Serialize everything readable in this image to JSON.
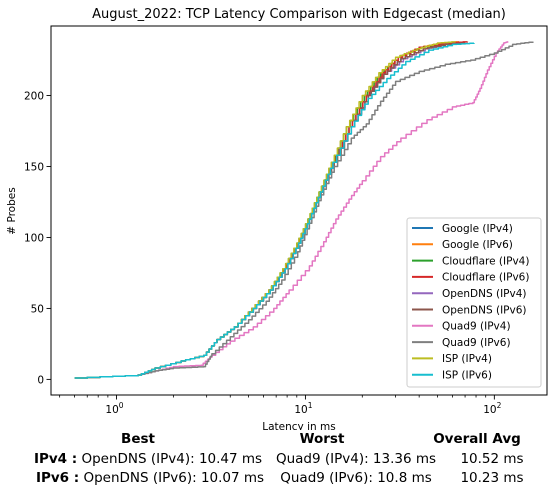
{
  "chart_data": {
    "type": "line",
    "title": "August_2022: TCP Latency Comparison with Edgecast (median)",
    "xlabel": "Latency in ms",
    "ylabel": "# Probes",
    "xscale": "log",
    "xlim": [
      0.45,
      190
    ],
    "ylim": [
      -11,
      249
    ],
    "x_ticks": [
      {
        "value": 1,
        "base": "10",
        "exp": "0"
      },
      {
        "value": 10,
        "base": "10",
        "exp": "1"
      },
      {
        "value": 100,
        "base": "10",
        "exp": "2"
      }
    ],
    "y_ticks": [
      0,
      50,
      100,
      150,
      200
    ],
    "grid": false,
    "legend_position": "lower-right",
    "series": [
      {
        "name": "Google (IPv4)",
        "color": "#1f77b4",
        "points": [
          [
            0.6,
            1
          ],
          [
            1.3,
            3
          ],
          [
            1.6,
            8
          ],
          [
            2.2,
            13
          ],
          [
            2.9,
            17
          ],
          [
            3.4,
            28
          ],
          [
            4.2,
            37
          ],
          [
            5.3,
            50
          ],
          [
            6.5,
            63
          ],
          [
            7.8,
            78
          ],
          [
            9.2,
            96
          ],
          [
            10.5,
            113
          ],
          [
            12,
            132
          ],
          [
            14,
            153
          ],
          [
            17,
            178
          ],
          [
            21,
            200
          ],
          [
            26,
            215
          ],
          [
            32,
            226
          ],
          [
            42,
            233
          ],
          [
            55,
            236
          ],
          [
            70,
            237
          ]
        ]
      },
      {
        "name": "Google (IPv6)",
        "color": "#ff7f0e",
        "points": [
          [
            0.6,
            1
          ],
          [
            1.3,
            3
          ],
          [
            1.6,
            8
          ],
          [
            2.2,
            13
          ],
          [
            2.9,
            17
          ],
          [
            3.4,
            28
          ],
          [
            4.2,
            37
          ],
          [
            5.3,
            50
          ],
          [
            6.5,
            63
          ],
          [
            7.7,
            78
          ],
          [
            9.1,
            96
          ],
          [
            10.4,
            113
          ],
          [
            11.9,
            132
          ],
          [
            13.8,
            153
          ],
          [
            16.5,
            178
          ],
          [
            20.5,
            200
          ],
          [
            25,
            216
          ],
          [
            31,
            227
          ],
          [
            40,
            234
          ],
          [
            52,
            237
          ],
          [
            65,
            238
          ]
        ]
      },
      {
        "name": "Cloudflare (IPv4)",
        "color": "#2ca02c",
        "points": [
          [
            0.6,
            1
          ],
          [
            1.3,
            3
          ],
          [
            1.6,
            8
          ],
          [
            2.2,
            13
          ],
          [
            2.9,
            17
          ],
          [
            3.4,
            28
          ],
          [
            4.2,
            37
          ],
          [
            5.2,
            50
          ],
          [
            6.4,
            63
          ],
          [
            7.6,
            78
          ],
          [
            9,
            96
          ],
          [
            10.3,
            113
          ],
          [
            11.8,
            132
          ],
          [
            13.8,
            153
          ],
          [
            16.5,
            178
          ],
          [
            20.5,
            200
          ],
          [
            25,
            216
          ],
          [
            31,
            227
          ],
          [
            40,
            234
          ],
          [
            52,
            236
          ],
          [
            68,
            237
          ]
        ]
      },
      {
        "name": "Cloudflare (IPv6)",
        "color": "#d62728",
        "points": [
          [
            0.6,
            1
          ],
          [
            1.3,
            3
          ],
          [
            1.6,
            8
          ],
          [
            2.2,
            13
          ],
          [
            2.9,
            17
          ],
          [
            3.4,
            28
          ],
          [
            4.2,
            37
          ],
          [
            5.2,
            50
          ],
          [
            6.4,
            63
          ],
          [
            7.7,
            78
          ],
          [
            9.1,
            96
          ],
          [
            10.4,
            113
          ],
          [
            11.9,
            132
          ],
          [
            14,
            153
          ],
          [
            17,
            178
          ],
          [
            21,
            200
          ],
          [
            25.5,
            216
          ],
          [
            31,
            227
          ],
          [
            40,
            234
          ],
          [
            55,
            237
          ],
          [
            72,
            238
          ]
        ]
      },
      {
        "name": "OpenDNS (IPv4)",
        "color": "#9467bd",
        "points": [
          [
            0.6,
            1
          ],
          [
            1.3,
            3
          ],
          [
            1.6,
            8
          ],
          [
            2.2,
            13
          ],
          [
            2.9,
            17
          ],
          [
            3.4,
            28
          ],
          [
            4.2,
            37
          ],
          [
            5.3,
            50
          ],
          [
            6.5,
            63
          ],
          [
            7.8,
            78
          ],
          [
            9.2,
            96
          ],
          [
            10.5,
            113
          ],
          [
            12,
            132
          ],
          [
            14,
            153
          ],
          [
            17.5,
            178
          ],
          [
            21.5,
            200
          ],
          [
            26,
            215
          ],
          [
            33,
            226
          ],
          [
            43,
            233
          ],
          [
            55,
            236
          ],
          [
            70,
            237
          ]
        ]
      },
      {
        "name": "OpenDNS (IPv6)",
        "color": "#8c564b",
        "points": [
          [
            0.6,
            1
          ],
          [
            1.3,
            3
          ],
          [
            1.6,
            8
          ],
          [
            2.2,
            13
          ],
          [
            2.9,
            17
          ],
          [
            3.4,
            28
          ],
          [
            4.2,
            37
          ],
          [
            5.3,
            50
          ],
          [
            6.5,
            63
          ],
          [
            7.8,
            78
          ],
          [
            9.2,
            96
          ],
          [
            10.5,
            113
          ],
          [
            12.1,
            132
          ],
          [
            14.2,
            153
          ],
          [
            17.5,
            178
          ],
          [
            21.5,
            200
          ],
          [
            26,
            215
          ],
          [
            32,
            226
          ],
          [
            42,
            233
          ],
          [
            55,
            236
          ],
          [
            70,
            237
          ]
        ]
      },
      {
        "name": "Quad9 (IPv4)",
        "color": "#e377c2",
        "points": [
          [
            0.6,
            1
          ],
          [
            1.3,
            3
          ],
          [
            1.6,
            6
          ],
          [
            2,
            9
          ],
          [
            2.8,
            10
          ],
          [
            3.2,
            17
          ],
          [
            4,
            27
          ],
          [
            5.3,
            37
          ],
          [
            6.8,
            50
          ],
          [
            8.2,
            63
          ],
          [
            10.5,
            80
          ],
          [
            12.5,
            97
          ],
          [
            14.5,
            113
          ],
          [
            17,
            127
          ],
          [
            20,
            140
          ],
          [
            25,
            157
          ],
          [
            32,
            170
          ],
          [
            44,
            183
          ],
          [
            60,
            192
          ],
          [
            77,
            195
          ],
          [
            84,
            205
          ],
          [
            92,
            218
          ],
          [
            102,
            230
          ],
          [
            112,
            237
          ],
          [
            118,
            238
          ]
        ]
      },
      {
        "name": "Quad9 (IPv6)",
        "color": "#7f7f7f",
        "points": [
          [
            0.6,
            1
          ],
          [
            1.3,
            3
          ],
          [
            1.6,
            6
          ],
          [
            2,
            8
          ],
          [
            2.9,
            9
          ],
          [
            3.2,
            18
          ],
          [
            4,
            30
          ],
          [
            5,
            42
          ],
          [
            6.2,
            55
          ],
          [
            7.5,
            70
          ],
          [
            9.1,
            90
          ],
          [
            10.5,
            110
          ],
          [
            12.1,
            130
          ],
          [
            14.2,
            150
          ],
          [
            17.5,
            170
          ],
          [
            21,
            180
          ],
          [
            25,
            196
          ],
          [
            30,
            210
          ],
          [
            40,
            217
          ],
          [
            55,
            222
          ],
          [
            75,
            225
          ],
          [
            100,
            230
          ],
          [
            125,
            236
          ],
          [
            160,
            238
          ]
        ]
      },
      {
        "name": "ISP (IPv4)",
        "color": "#bcbd22",
        "points": [
          [
            0.6,
            1
          ],
          [
            1.3,
            3
          ],
          [
            1.6,
            8
          ],
          [
            2.2,
            13
          ],
          [
            2.9,
            17
          ],
          [
            3.4,
            28
          ],
          [
            4.2,
            37
          ],
          [
            5.2,
            50
          ],
          [
            6.4,
            63
          ],
          [
            7.6,
            78
          ],
          [
            9,
            96
          ],
          [
            10.3,
            113
          ],
          [
            11.8,
            132
          ],
          [
            13.7,
            153
          ],
          [
            16.5,
            178
          ],
          [
            20,
            200
          ],
          [
            24.5,
            216
          ],
          [
            30,
            227
          ],
          [
            39,
            233
          ],
          [
            50,
            237
          ],
          [
            62,
            238
          ]
        ]
      },
      {
        "name": "ISP (IPv6)",
        "color": "#17becf",
        "points": [
          [
            0.6,
            1
          ],
          [
            1.3,
            3
          ],
          [
            1.6,
            8
          ],
          [
            2.2,
            13
          ],
          [
            2.9,
            17
          ],
          [
            3.4,
            28
          ],
          [
            4.2,
            37
          ],
          [
            5.3,
            50
          ],
          [
            6.5,
            63
          ],
          [
            7.8,
            78
          ],
          [
            9.2,
            96
          ],
          [
            10.5,
            113
          ],
          [
            12,
            132
          ],
          [
            14,
            153
          ],
          [
            17.5,
            178
          ],
          [
            21.5,
            198
          ],
          [
            27,
            212
          ],
          [
            34,
            224
          ],
          [
            45,
            232
          ],
          [
            60,
            236
          ],
          [
            78,
            237
          ]
        ]
      }
    ]
  },
  "summary": {
    "headers": {
      "best": "Best",
      "worst": "Worst",
      "overall": "Overall Avg"
    },
    "rows": [
      {
        "label": "IPv4 :",
        "best": "OpenDNS (IPv4): 10.47 ms",
        "worst": "Quad9 (IPv4): 13.36 ms",
        "overall": "10.52 ms"
      },
      {
        "label": "IPv6 :",
        "best": "OpenDNS (IPv6): 10.07 ms",
        "worst": "Quad9 (IPv6): 10.8 ms",
        "overall": "10.23 ms"
      }
    ]
  }
}
